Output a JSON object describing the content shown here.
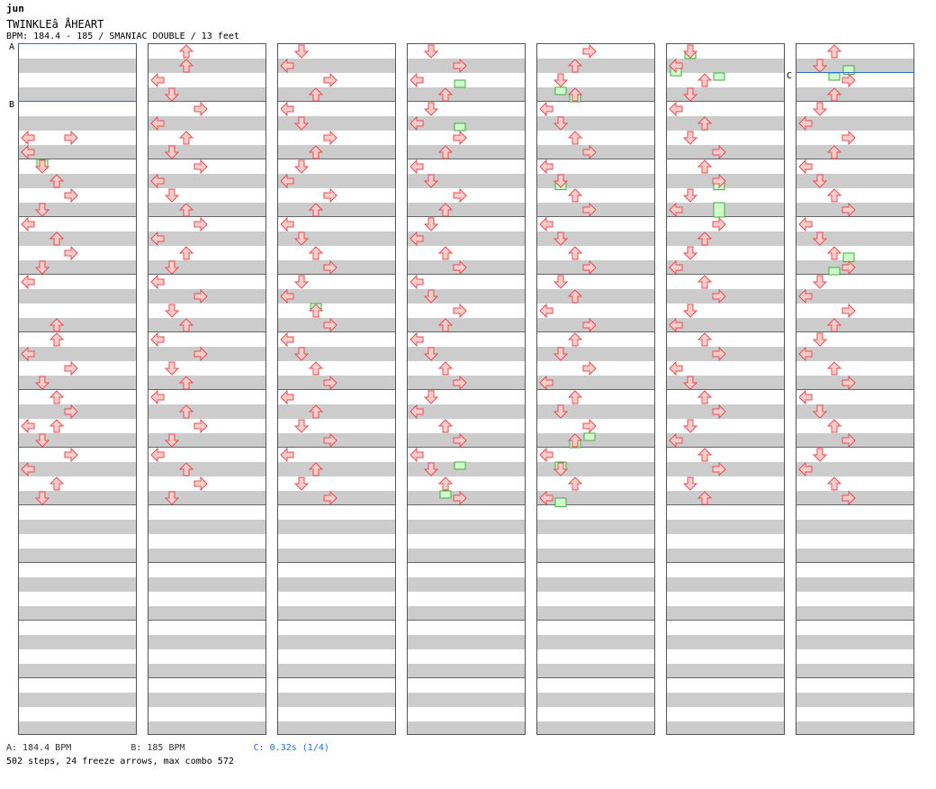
{
  "header": {
    "artist": "jun",
    "title": "TWINKLEâ ÅHEART",
    "meta": "BPM: 184.4 - 185 / SMANIAC DOUBLE / 13 feet"
  },
  "footer": {
    "bpm_a": "A: 184.4 BPM",
    "bpm_b": "B: 185 BPM",
    "stop_c": "C: 0.32s (1/4)",
    "stats": "502 steps, 24 freeze arrows, max combo 572"
  },
  "markers": [
    "A",
    "B",
    "C"
  ],
  "colors": {
    "stripe_gray": "#cccccc",
    "red_fill": "#ffcccc",
    "red_stroke": "#e05050",
    "blue_fill": "#99ccff",
    "blue_stroke": "#2f7fd0",
    "pink_fill": "#ffccff",
    "pink_stroke": "#cc66cc",
    "freeze_fill": "#ccffcc",
    "freeze_stroke": "#44aa44",
    "bpm_line": "#2a6fd0"
  },
  "chart": {
    "columns": 7,
    "lanes": 8,
    "measures_per_column": 12,
    "lane_order": [
      "left",
      "down",
      "up",
      "right",
      "left",
      "down",
      "up",
      "right"
    ],
    "columns_data": [
      {
        "notes": [
          [
            6,
            0
          ],
          [
            6,
            3
          ],
          [
            7,
            0
          ],
          [
            8,
            1
          ],
          [
            9,
            2
          ],
          [
            10,
            3
          ],
          [
            11,
            1
          ],
          [
            12,
            0
          ],
          [
            13,
            2
          ],
          [
            14,
            3
          ],
          [
            15,
            1
          ],
          [
            16,
            0
          ],
          [
            19,
            2
          ],
          [
            20,
            2
          ],
          [
            21,
            0
          ],
          [
            22,
            3
          ],
          [
            23,
            1
          ],
          [
            24,
            2
          ],
          [
            25,
            3
          ],
          [
            26,
            0
          ],
          [
            26,
            2
          ],
          [
            27,
            1
          ],
          [
            28,
            3
          ],
          [
            29,
            0
          ],
          [
            30,
            2
          ],
          [
            31,
            1
          ]
        ],
        "freezes": [
          [
            7.5,
            1,
            8
          ]
        ]
      },
      {
        "notes": [
          [
            0,
            2
          ],
          [
            1,
            2
          ],
          [
            2,
            0
          ],
          [
            3,
            1
          ],
          [
            4,
            3
          ],
          [
            5,
            0
          ],
          [
            6,
            2
          ],
          [
            7,
            1
          ],
          [
            8,
            3
          ],
          [
            9,
            0
          ],
          [
            10,
            1
          ],
          [
            11,
            2
          ],
          [
            12,
            3
          ],
          [
            13,
            0
          ],
          [
            14,
            2
          ],
          [
            15,
            1
          ],
          [
            16,
            0
          ],
          [
            17,
            3
          ],
          [
            18,
            1
          ],
          [
            19,
            2
          ],
          [
            20,
            0
          ],
          [
            21,
            3
          ],
          [
            22,
            1
          ],
          [
            23,
            2
          ],
          [
            24,
            0
          ],
          [
            25,
            2
          ],
          [
            26,
            3
          ],
          [
            27,
            1
          ],
          [
            28,
            0
          ],
          [
            29,
            2
          ],
          [
            30,
            3
          ],
          [
            31,
            1
          ]
        ],
        "freezes": []
      },
      {
        "notes": [
          [
            0,
            1
          ],
          [
            1,
            0
          ],
          [
            2,
            3
          ],
          [
            3,
            2
          ],
          [
            4,
            0
          ],
          [
            5,
            1
          ],
          [
            6,
            3
          ],
          [
            7,
            2
          ],
          [
            8,
            1
          ],
          [
            9,
            0
          ],
          [
            10,
            3
          ],
          [
            11,
            2
          ],
          [
            12,
            0
          ],
          [
            13,
            1
          ],
          [
            14,
            2
          ],
          [
            15,
            3
          ],
          [
            16,
            1
          ],
          [
            17,
            0
          ],
          [
            18,
            2
          ],
          [
            19,
            3
          ],
          [
            20,
            0
          ],
          [
            21,
            1
          ],
          [
            22,
            2
          ],
          [
            23,
            3
          ],
          [
            24,
            0
          ],
          [
            25,
            2
          ],
          [
            26,
            1
          ],
          [
            27,
            3
          ],
          [
            28,
            0
          ],
          [
            29,
            2
          ],
          [
            30,
            1
          ],
          [
            31,
            3
          ]
        ],
        "freezes": [
          [
            17.5,
            2,
            18
          ]
        ]
      },
      {
        "notes": [
          [
            0,
            1
          ],
          [
            1,
            3
          ],
          [
            2,
            0
          ],
          [
            3,
            2
          ],
          [
            4,
            1
          ],
          [
            5,
            0
          ],
          [
            6,
            3
          ],
          [
            7,
            2
          ],
          [
            8,
            0
          ],
          [
            9,
            1
          ],
          [
            10,
            3
          ],
          [
            11,
            2
          ],
          [
            12,
            1
          ],
          [
            13,
            0
          ],
          [
            14,
            2
          ],
          [
            15,
            3
          ],
          [
            16,
            0
          ],
          [
            17,
            1
          ],
          [
            18,
            3
          ],
          [
            19,
            2
          ],
          [
            20,
            0
          ],
          [
            21,
            1
          ],
          [
            22,
            2
          ],
          [
            23,
            3
          ],
          [
            24,
            1
          ],
          [
            25,
            0
          ],
          [
            26,
            2
          ],
          [
            27,
            3
          ],
          [
            28,
            0
          ],
          [
            29,
            1
          ],
          [
            30,
            2
          ],
          [
            31,
            3
          ]
        ],
        "freezes": [
          [
            2,
            3,
            2.5
          ],
          [
            5,
            3,
            5.5
          ],
          [
            28.5,
            3,
            29
          ],
          [
            30.5,
            2,
            31
          ]
        ]
      },
      {
        "notes": [
          [
            0,
            3
          ],
          [
            1,
            2
          ],
          [
            2,
            1
          ],
          [
            3,
            2
          ],
          [
            4,
            0
          ],
          [
            5,
            1
          ],
          [
            6,
            2
          ],
          [
            7,
            3
          ],
          [
            8,
            0
          ],
          [
            9,
            1
          ],
          [
            10,
            2
          ],
          [
            11,
            3
          ],
          [
            12,
            0
          ],
          [
            13,
            1
          ],
          [
            14,
            2
          ],
          [
            15,
            3
          ],
          [
            16,
            1
          ],
          [
            17,
            2
          ],
          [
            18,
            0
          ],
          [
            19,
            3
          ],
          [
            20,
            2
          ],
          [
            21,
            1
          ],
          [
            22,
            3
          ],
          [
            23,
            0
          ],
          [
            24,
            2
          ],
          [
            25,
            1
          ],
          [
            26,
            3
          ],
          [
            27,
            2
          ],
          [
            28,
            0
          ],
          [
            29,
            1
          ],
          [
            30,
            2
          ],
          [
            31,
            0
          ]
        ],
        "freezes": [
          [
            2.5,
            1,
            3
          ],
          [
            3,
            2,
            3.5
          ],
          [
            9,
            1,
            9.6
          ],
          [
            26.5,
            3,
            27
          ],
          [
            27,
            2,
            27.5
          ],
          [
            28.5,
            1,
            29
          ],
          [
            31,
            1,
            31.6
          ]
        ]
      },
      {
        "notes": [
          [
            0,
            1
          ],
          [
            1,
            0
          ],
          [
            2,
            2
          ],
          [
            3,
            1
          ],
          [
            4,
            0
          ],
          [
            5,
            2
          ],
          [
            6,
            1
          ],
          [
            7,
            3
          ],
          [
            8,
            2
          ],
          [
            9,
            3
          ],
          [
            10,
            1
          ],
          [
            11,
            0
          ],
          [
            12,
            3
          ],
          [
            13,
            2
          ],
          [
            14,
            1
          ],
          [
            15,
            0
          ],
          [
            16,
            2
          ],
          [
            17,
            3
          ],
          [
            18,
            1
          ],
          [
            19,
            0
          ],
          [
            20,
            2
          ],
          [
            21,
            3
          ],
          [
            22,
            0
          ],
          [
            23,
            1
          ],
          [
            24,
            2
          ],
          [
            25,
            3
          ],
          [
            26,
            1
          ],
          [
            27,
            0
          ],
          [
            28,
            2
          ],
          [
            29,
            3
          ],
          [
            30,
            1
          ],
          [
            31,
            2
          ]
        ],
        "freezes": [
          [
            0,
            1,
            0.4
          ],
          [
            1,
            0,
            1.7
          ],
          [
            1.5,
            3,
            2
          ],
          [
            9,
            3,
            9.6
          ],
          [
            10.5,
            3,
            11.5
          ]
        ]
      },
      {
        "notes": [
          [
            0,
            2
          ],
          [
            1,
            1
          ],
          [
            2,
            3
          ],
          [
            3,
            2
          ],
          [
            4,
            1
          ],
          [
            5,
            0
          ],
          [
            6,
            3
          ],
          [
            7,
            2
          ],
          [
            8,
            0
          ],
          [
            9,
            1
          ],
          [
            10,
            2
          ],
          [
            11,
            3
          ],
          [
            12,
            0
          ],
          [
            13,
            1
          ],
          [
            14,
            2
          ],
          [
            15,
            3
          ],
          [
            16,
            1
          ],
          [
            17,
            0
          ],
          [
            18,
            3
          ],
          [
            19,
            2
          ],
          [
            20,
            1
          ],
          [
            21,
            0
          ],
          [
            22,
            2
          ],
          [
            23,
            3
          ],
          [
            24,
            0
          ],
          [
            25,
            1
          ],
          [
            26,
            2
          ],
          [
            27,
            3
          ],
          [
            28,
            1
          ],
          [
            29,
            0
          ],
          [
            30,
            2
          ],
          [
            31,
            3
          ]
        ],
        "freezes": [
          [
            1,
            3,
            1.6
          ],
          [
            1.5,
            2,
            2
          ],
          [
            14,
            3,
            14.6
          ],
          [
            15,
            2,
            15.5
          ]
        ]
      }
    ],
    "bpm_changes": [
      {
        "label": "A",
        "column": 0,
        "beat": 0
      },
      {
        "label": "B",
        "column": 0,
        "beat": 4
      },
      {
        "label": "C",
        "column": 6,
        "beat": 2
      }
    ]
  }
}
